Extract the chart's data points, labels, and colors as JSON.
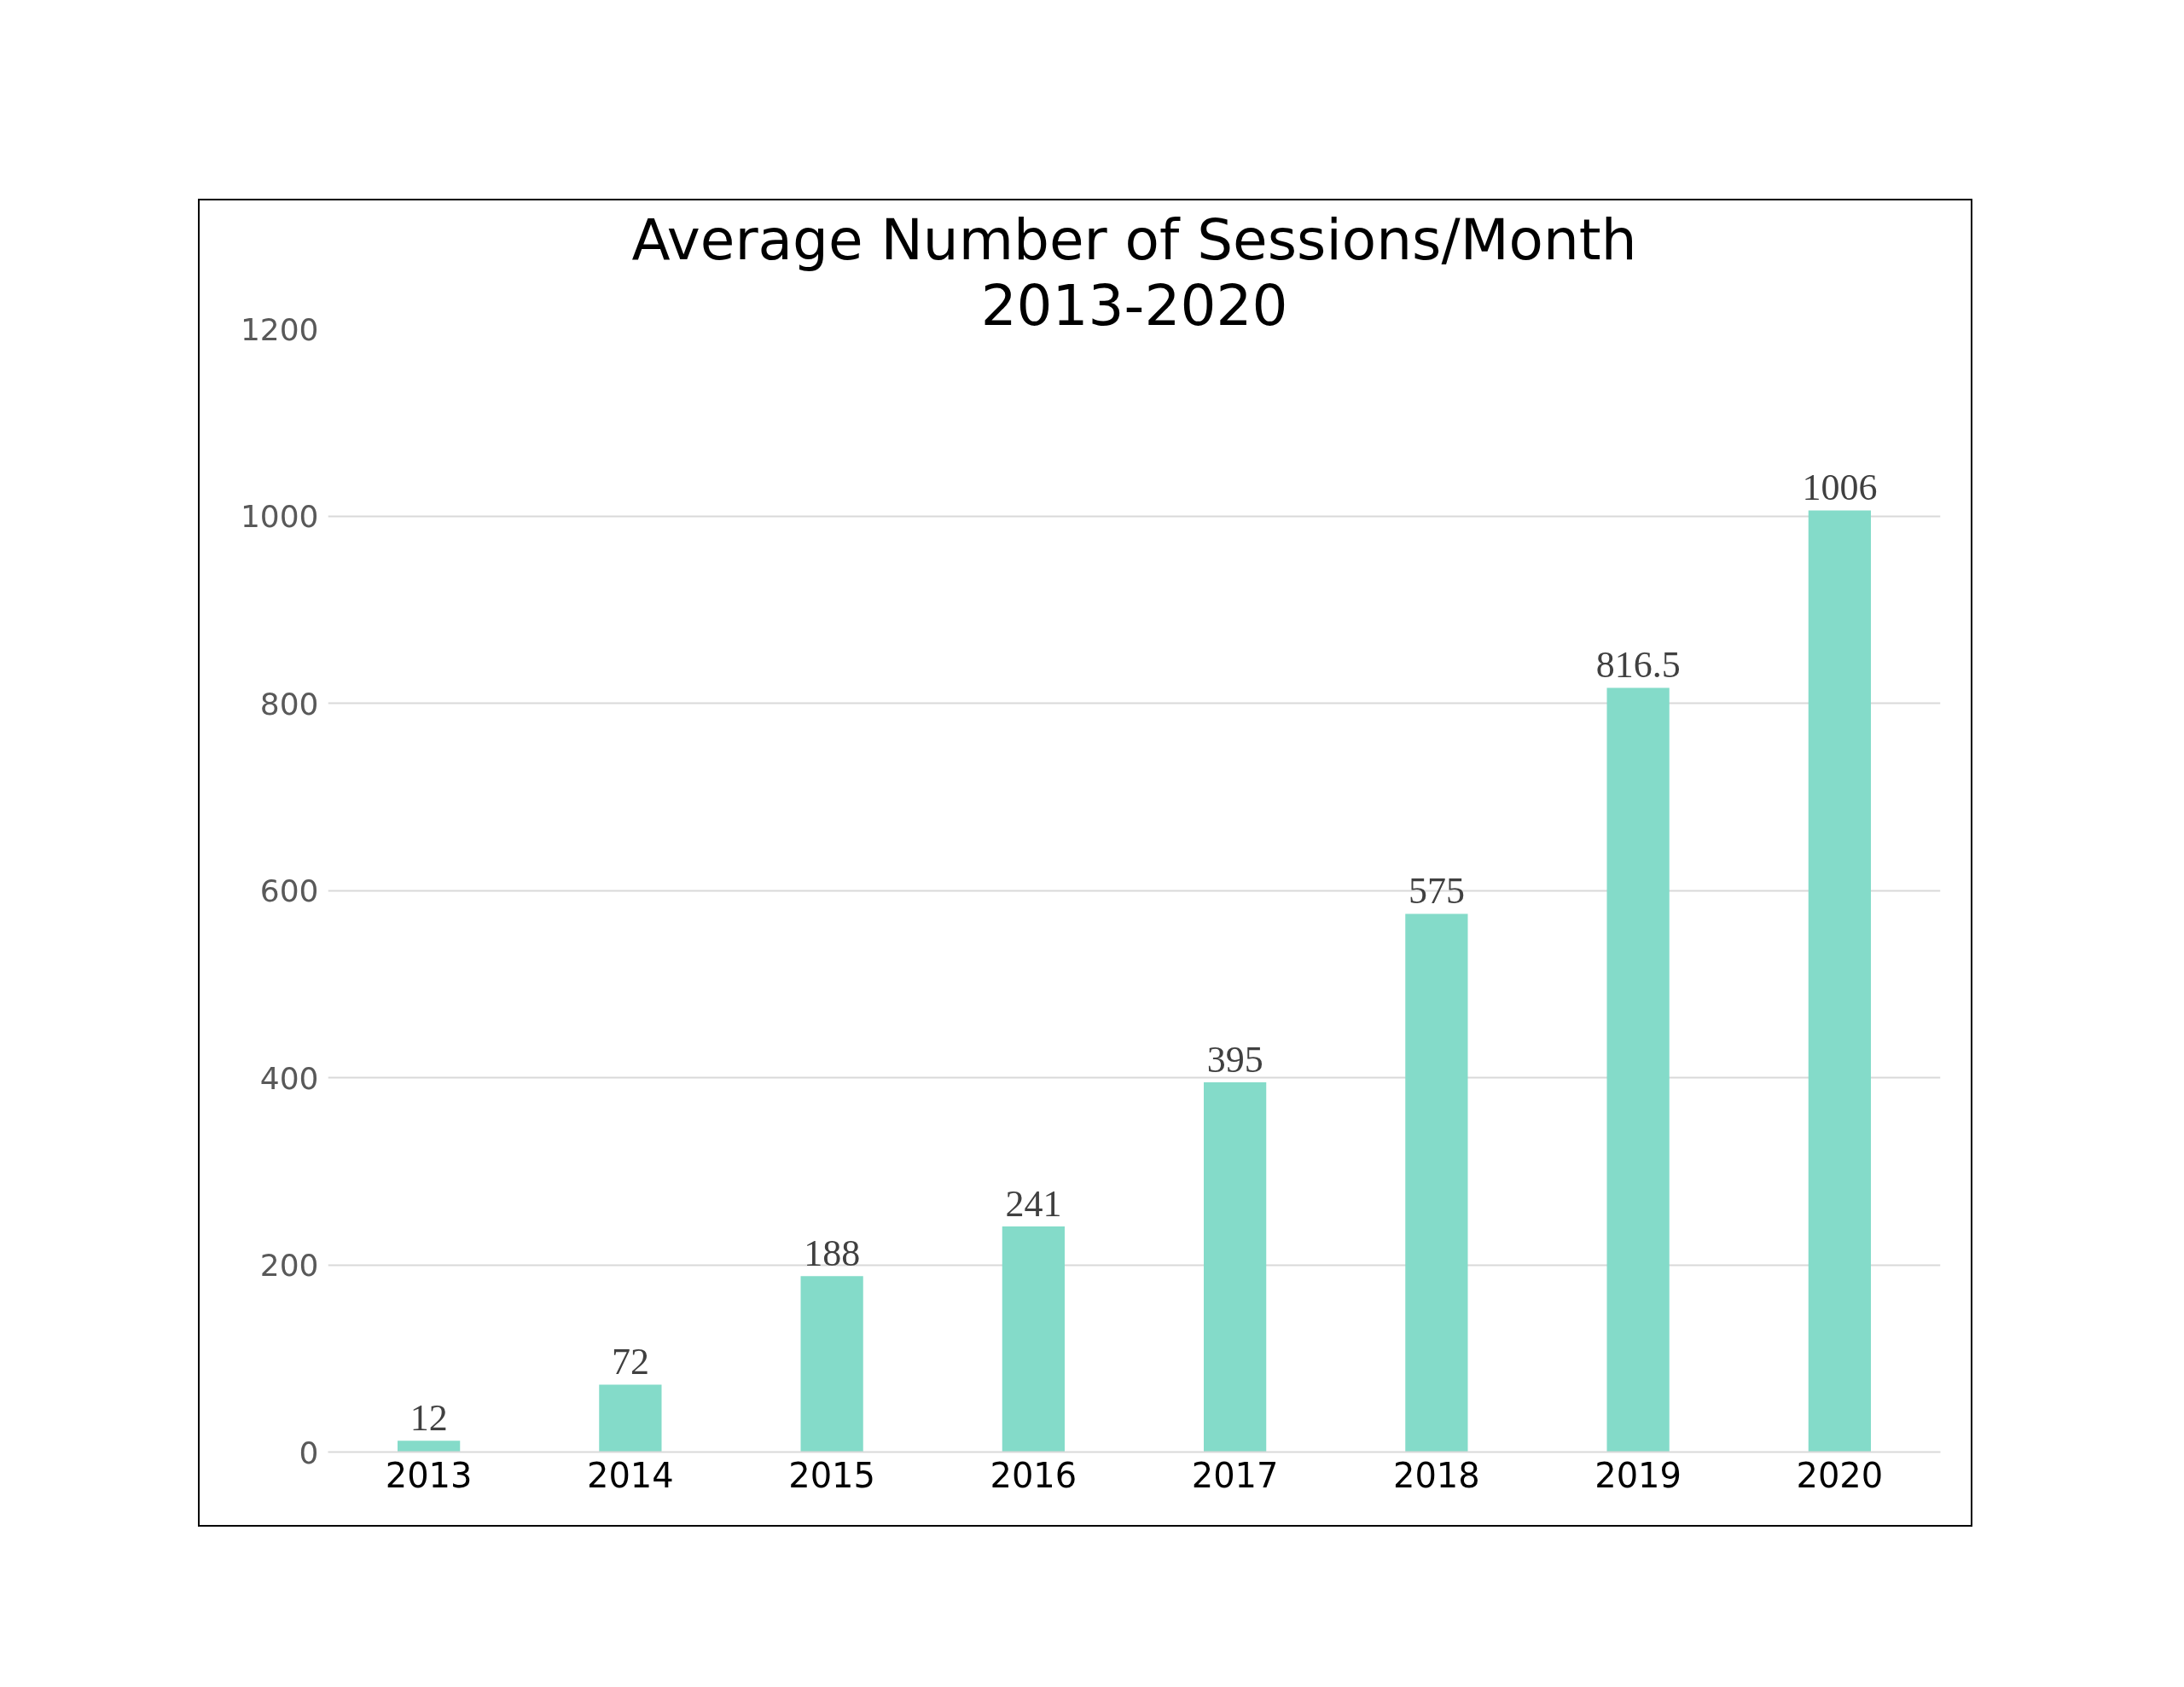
{
  "chart_data": {
    "type": "bar",
    "title": "Average Number of Sessions/Month",
    "subtitle": "2013-2020",
    "categories": [
      "2013",
      "2014",
      "2015",
      "2016",
      "2017",
      "2018",
      "2019",
      "2020"
    ],
    "values": [
      12,
      72,
      188,
      241,
      395,
      575,
      816.5,
      1006
    ],
    "color": "#84dbc9",
    "ylim": [
      0,
      1200
    ],
    "yticks": [
      0,
      200,
      400,
      600,
      800,
      1000,
      1200
    ],
    "grid": "y",
    "data_labels": true
  }
}
